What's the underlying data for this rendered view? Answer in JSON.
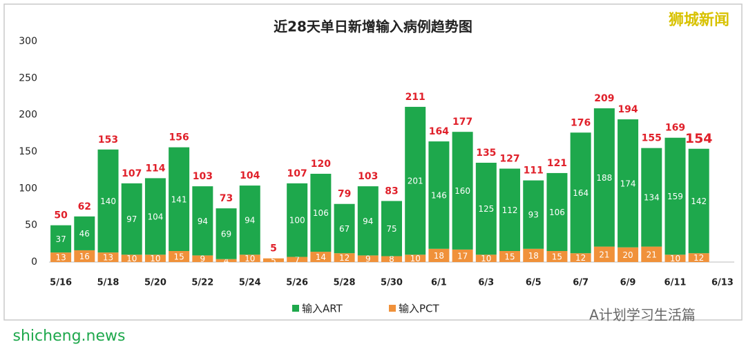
{
  "chart_data": {
    "type": "stacked-bar",
    "title": "近28天单日新增输入病例趋势图",
    "categories": [
      "5/16",
      null,
      "5/18",
      null,
      "5/20",
      null,
      "5/22",
      null,
      "5/24",
      null,
      "5/26",
      null,
      "5/28",
      null,
      "5/30",
      null,
      "6/1",
      null,
      "6/3",
      null,
      "6/5",
      null,
      "6/7",
      null,
      "6/9",
      null,
      "6/11",
      null,
      "6/13"
    ],
    "series": [
      {
        "name": "输入ART",
        "color": "#1ea84c",
        "values": [
          37,
          46,
          140,
          97,
          104,
          141,
          94,
          69,
          94,
          null,
          100,
          106,
          67,
          94,
          75,
          201,
          146,
          160,
          125,
          112,
          93,
          106,
          164,
          188,
          174,
          134,
          159,
          142,
          null
        ]
      },
      {
        "name": "输入PCT",
        "color": "#f0913a",
        "values": [
          13,
          16,
          13,
          10,
          10,
          15,
          9,
          4,
          10,
          5,
          7,
          14,
          12,
          9,
          8,
          10,
          18,
          17,
          10,
          15,
          18,
          15,
          12,
          21,
          20,
          21,
          10,
          12,
          null
        ]
      }
    ],
    "totals": [
      50,
      62,
      153,
      107,
      114,
      156,
      103,
      73,
      104,
      5,
      107,
      120,
      79,
      103,
      83,
      211,
      164,
      177,
      135,
      127,
      111,
      121,
      176,
      209,
      194,
      155,
      169,
      154,
      null
    ],
    "ylim": [
      0,
      300
    ],
    "yticks": [
      0,
      50,
      100,
      150,
      200,
      250,
      300
    ],
    "grid": false,
    "legend": "bottom"
  },
  "watermark": "狮城新闻",
  "account": "A计划学习生活篇",
  "site": "shicheng.news"
}
